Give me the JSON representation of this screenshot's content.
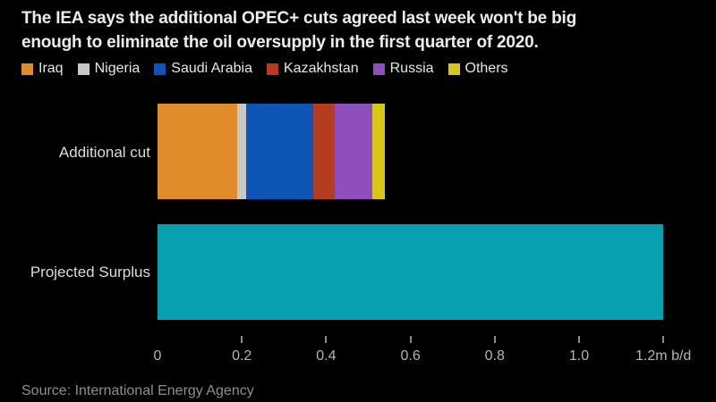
{
  "title": {
    "lines": [
      "The IEA says the additional OPEC+ cuts agreed last week won't be big",
      "enough to eliminate the oil oversupply in the first quarter of 2020."
    ]
  },
  "legend": {
    "items": [
      {
        "label": "Iraq",
        "color": "#E08C2B"
      },
      {
        "label": "Nigeria",
        "color": "#C8C8C8"
      },
      {
        "label": "Saudi Arabia",
        "color": "#0C55B5"
      },
      {
        "label": "Kazakhstan",
        "color": "#B53C20"
      },
      {
        "label": "Russia",
        "color": "#8C4FBC"
      },
      {
        "label": "Others",
        "color": "#D8C717"
      }
    ]
  },
  "chart_data": {
    "type": "bar",
    "orientation": "horizontal",
    "title": "The IEA says the additional OPEC+ cuts agreed last week won't be big enough to eliminate the oil oversupply in the first quarter of 2020.",
    "unit": "m b/d",
    "background_color": "#000000",
    "categories": [
      "Additional cut",
      "Projected Surplus"
    ],
    "rows": [
      {
        "label": "Additional cut",
        "type": "stacked",
        "total": 0.54,
        "segments": [
          {
            "name": "Iraq",
            "value": 0.19,
            "color": "#E08C2B"
          },
          {
            "name": "Nigeria",
            "value": 0.02,
            "color": "#C8C8C8"
          },
          {
            "name": "Saudi Arabia",
            "value": 0.16,
            "color": "#0C55B5"
          },
          {
            "name": "Kazakhstan",
            "value": 0.05,
            "color": "#B53C20"
          },
          {
            "name": "Russia",
            "value": 0.09,
            "color": "#8C4FBC"
          },
          {
            "name": "Others",
            "value": 0.03,
            "color": "#D8C717"
          }
        ]
      },
      {
        "label": "Projected Surplus",
        "type": "single",
        "value": 1.2,
        "color": "#07A0B1"
      }
    ],
    "x_axis": {
      "tick_values": [
        0,
        0.2,
        0.4,
        0.6,
        0.8,
        1.0,
        1.2
      ],
      "tick_labels": [
        "0",
        "0.2",
        "0.4",
        "0.6",
        "0.8",
        "1.0",
        "1.2m b/d"
      ],
      "xlim": [
        0,
        1.2
      ],
      "grid": false,
      "legend_position": "top"
    },
    "source": "Source: International Energy Agency"
  },
  "source": "Source: International Energy Agency"
}
